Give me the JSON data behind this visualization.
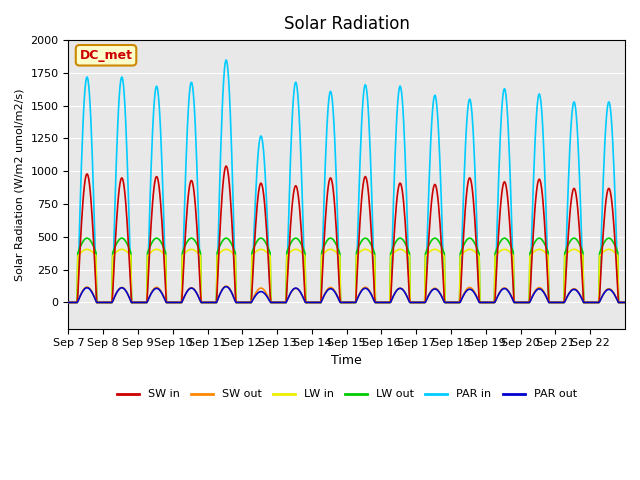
{
  "title": "Solar Radiation",
  "ylabel": "Solar Radiation (W/m2 umol/m2/s)",
  "xlabel": "Time",
  "ylim": [
    -200,
    2000
  ],
  "annotation": "DC_met",
  "bg_color": "#e8e8e8",
  "x_tick_labels": [
    "Sep 7",
    "Sep 8",
    "Sep 9",
    "Sep 10",
    "Sep 11",
    "Sep 12",
    "Sep 13",
    "Sep 14",
    "Sep 15",
    "Sep 16",
    "Sep 17",
    "Sep 18",
    "Sep 19",
    "Sep 20",
    "Sep 21",
    "Sep 22"
  ],
  "series": {
    "SW_in": {
      "color": "#cc0000",
      "lw": 1.2
    },
    "SW_out": {
      "color": "#ff8800",
      "lw": 1.2
    },
    "LW_in": {
      "color": "#eeee00",
      "lw": 1.2
    },
    "LW_out": {
      "color": "#00cc00",
      "lw": 1.2
    },
    "PAR_in": {
      "color": "#00ccff",
      "lw": 1.2
    },
    "PAR_out": {
      "color": "#0000cc",
      "lw": 1.2
    }
  },
  "legend": [
    {
      "label": "SW in",
      "color": "#cc0000"
    },
    {
      "label": "SW out",
      "color": "#ff8800"
    },
    {
      "label": "LW in",
      "color": "#eeee00"
    },
    {
      "label": "LW out",
      "color": "#00cc00"
    },
    {
      "label": "PAR in",
      "color": "#00ccff"
    },
    {
      "label": "PAR out",
      "color": "#0000cc"
    }
  ],
  "sw_in_peaks": [
    980,
    950,
    960,
    930,
    1040,
    910,
    890,
    950,
    960,
    910,
    900,
    950,
    920,
    940,
    870,
    870
  ],
  "par_in_peaks": [
    1720,
    1720,
    1650,
    1680,
    1850,
    1270,
    1680,
    1610,
    1660,
    1650,
    1580,
    1550,
    1630,
    1590,
    1530,
    1530
  ]
}
